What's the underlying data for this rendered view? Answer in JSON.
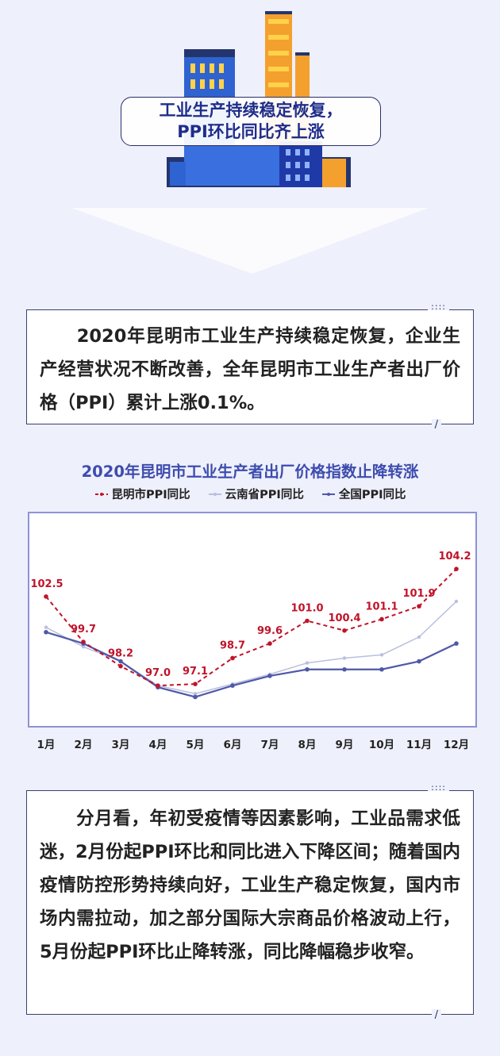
{
  "banner": {
    "line1": "工业生产持续稳定恢复，",
    "line2": "PPI环比同比齐上涨"
  },
  "intro": {
    "text": "　　2020年昆明市工业生产持续稳定恢复，企业生产经营状况不断改善，全年昆明市工业生产者出厂价格（PPI）累计上涨0.1%。"
  },
  "summary": {
    "text": "　　分月看，年初受疫情等因素影响，工业品需求低迷，2月份起PPI环比和同比进入下降区间；随着国内疫情防控形势持续向好，工业生产稳定恢复，国内市场内需拉动，加之部分国际大宗商品价格波动上行，5月份起PPI环比止降转涨，同比降幅稳步收窄。"
  },
  "decor": {
    "dots": "::::",
    "slash": "/"
  },
  "colors": {
    "kunming": "#c0142a",
    "yunnan": "#b9bfdf",
    "national": "#5058a8",
    "title": "#3d4cae"
  },
  "chart_data": {
    "type": "line",
    "title": "2020年昆明市工业生产者出厂价格指数止降转涨",
    "categories": [
      "1月",
      "2月",
      "3月",
      "4月",
      "5月",
      "6月",
      "7月",
      "8月",
      "9月",
      "10月",
      "11月",
      "12月"
    ],
    "series": [
      {
        "name": "昆明市PPI同比",
        "values": [
          102.5,
          99.7,
          98.2,
          97.0,
          97.1,
          98.7,
          99.6,
          101.0,
          100.4,
          101.1,
          101.9,
          104.2
        ],
        "labels": [
          "102.5",
          "99.7",
          "98.2",
          "97.0",
          "97.1",
          "98.7",
          "99.6",
          "101.0",
          "100.4",
          "101.1",
          "101.9",
          "104.2"
        ],
        "style": "dashed"
      },
      {
        "name": "云南省PPI同比",
        "values": [
          100.6,
          99.4,
          98.5,
          97.0,
          96.5,
          97.1,
          97.7,
          98.4,
          98.7,
          98.9,
          100.0,
          102.2
        ],
        "style": "solid-light"
      },
      {
        "name": "全国PPI同比",
        "values": [
          100.3,
          99.6,
          98.5,
          96.9,
          96.3,
          97.0,
          97.6,
          98.0,
          98.0,
          98.0,
          98.5,
          99.6
        ],
        "style": "solid"
      }
    ],
    "ylim": [
      95,
      107
    ],
    "legend": "top-center",
    "grid": false
  }
}
